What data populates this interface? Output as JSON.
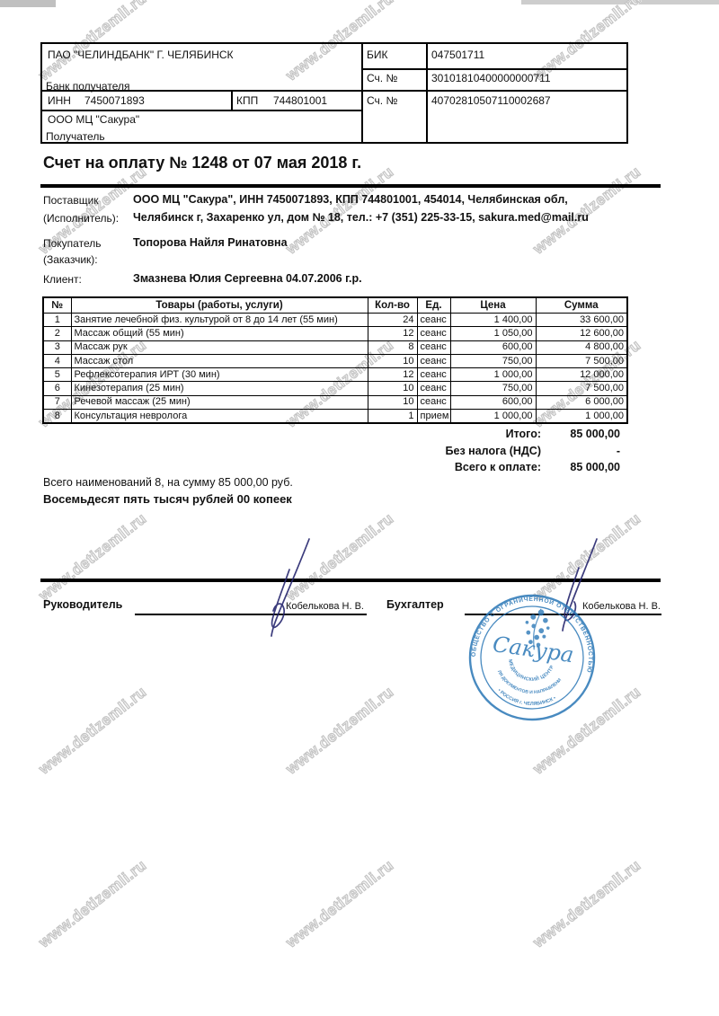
{
  "watermark": {
    "text": "www.detizemli.ru"
  },
  "bank_table": {
    "bank_name": "ПАО \"ЧЕЛИНДБАНК\" Г. ЧЕЛЯБИНСК",
    "bank_label": "Банк получателя",
    "bik_label": "БИК",
    "bik_value": "047501711",
    "corr_account_label": "Сч. №",
    "corr_account_value": "30101810400000000711",
    "inn_label": "ИНН",
    "inn_value": "7450071893",
    "kpp_label": "КПП",
    "kpp_value": "744801001",
    "account_label": "Сч. №",
    "account_value": "40702810507110002687",
    "payee_name": "ООО МЦ \"Сакура\"",
    "payee_label": "Получатель"
  },
  "title": "Счет на оплату № 1248 от 07 мая 2018 г.",
  "supplier": {
    "label_line1": "Поставщик",
    "label_line2": "(Исполнитель):",
    "value_line1": "ООО МЦ \"Сакура\", ИНН 7450071893, КПП 744801001, 454014, Челябинская обл,",
    "value_line2": "Челябинск г, Захаренко ул, дом № 18, тел.: +7 (351) 225-33-15, sakura.med@mail.ru"
  },
  "buyer": {
    "label_line1": "Покупатель",
    "label_line2": "(Заказчик):",
    "value": "Топорова Найля Ринатовна"
  },
  "client": {
    "label": "Клиент:",
    "value": "Змазнева Юлия Сергеевна 04.07.2006 г.р."
  },
  "items_table": {
    "headers": [
      "№",
      "Товары (работы, услуги)",
      "Кол-во",
      "Ед.",
      "Цена",
      "Сумма"
    ],
    "rows": [
      [
        "1",
        "Занятие лечебной физ. культурой от 8 до 14 лет (55 мин)",
        "24",
        "сеанс",
        "1 400,00",
        "33 600,00"
      ],
      [
        "2",
        "Массаж общий (55 мин)",
        "12",
        "сеанс",
        "1 050,00",
        "12 600,00"
      ],
      [
        "3",
        "Массаж рук",
        "8",
        "сеанс",
        "600,00",
        "4 800,00"
      ],
      [
        "4",
        "Массаж стол",
        "10",
        "сеанс",
        "750,00",
        "7 500,00"
      ],
      [
        "5",
        "Рефлексотерапия ИРТ (30 мин)",
        "12",
        "сеанс",
        "1 000,00",
        "12 000,00"
      ],
      [
        "6",
        "Кинезотерапия (25 мин)",
        "10",
        "сеанс",
        "750,00",
        "7 500,00"
      ],
      [
        "7",
        "Речевой массаж (25 мин)",
        "10",
        "сеанс",
        "600,00",
        "6 000,00"
      ],
      [
        "8",
        "Консультация невролога",
        "1",
        "прием",
        "1 000,00",
        "1 000,00"
      ]
    ]
  },
  "totals": {
    "rows": [
      {
        "label": "Итого:",
        "value": "85 000,00"
      },
      {
        "label": "Без налога (НДС)",
        "value": "-"
      },
      {
        "label": "Всего к оплате:",
        "value": "85 000,00"
      }
    ]
  },
  "summary": {
    "line1": "Всего наименований 8, на сумму 85 000,00 руб.",
    "line2": "Восемьдесят пять тысяч рублей 00 копеек"
  },
  "signatures": {
    "director_label": "Руководитель",
    "director_name": "Кобелькова Н. В.",
    "accountant_label": "Бухгалтер",
    "accountant_name": "Кобелькова Н. В.",
    "ink_color": "#26266e"
  },
  "stamp": {
    "ring_text": "ОБЩЕСТВО С ОГРАНИЧЕННОЙ ОТВЕТСТВЕННОСТЬЮ",
    "center_name": "Сакура",
    "center_subtitle": "МЕДИЦИНСКИЙ ЦЕНТР",
    "bottom_text1": "ДЛЯ ДОКУМЕНТОВ И НАПРАВЛЕНИЙ",
    "bottom_text2": "• РОССИЯ г. ЧЕЛЯБИНСК •",
    "color": "#2f7ab8"
  }
}
